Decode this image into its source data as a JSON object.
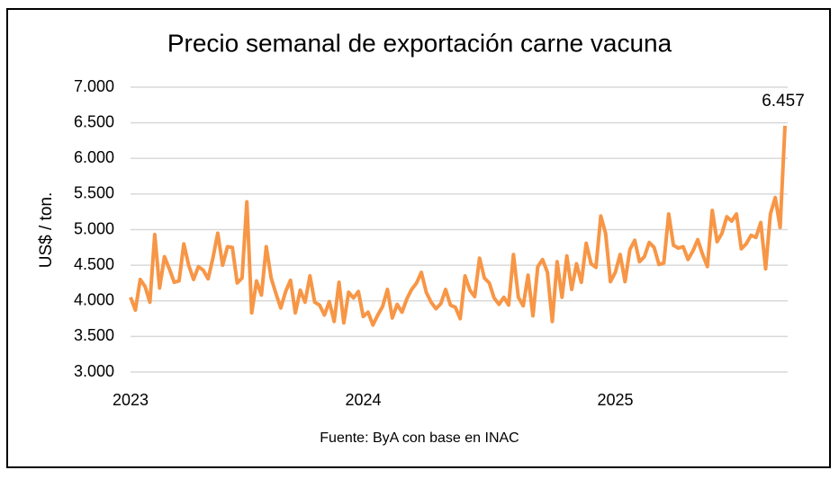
{
  "chart_data": {
    "type": "line",
    "title": "Precio semanal de exportación carne vacuna",
    "y_label": "US$ / ton.",
    "source": "Fuente: ByA con base en INAC",
    "categories": [
      "2023",
      null,
      null,
      null,
      null,
      null,
      null,
      null,
      null,
      null,
      null,
      null,
      null,
      null,
      null,
      null,
      null,
      null,
      null,
      null,
      null,
      null,
      null,
      null,
      null,
      null,
      null,
      null,
      null,
      null,
      null,
      null,
      null,
      null,
      null,
      null,
      null,
      null,
      null,
      null,
      null,
      null,
      null,
      null,
      null,
      null,
      null,
      null,
      "2024",
      null,
      null,
      null,
      null,
      null,
      null,
      null,
      null,
      null,
      null,
      null,
      null,
      null,
      null,
      null,
      null,
      null,
      null,
      null,
      null,
      null,
      null,
      null,
      null,
      null,
      null,
      null,
      null,
      null,
      null,
      null,
      null,
      null,
      null,
      null,
      null,
      null,
      null,
      null,
      null,
      null,
      null,
      null,
      null,
      null,
      null,
      null,
      null,
      null,
      null,
      null,
      "2025",
      null,
      null,
      null,
      null,
      null,
      null,
      null,
      null,
      null,
      null,
      null,
      null,
      null,
      null,
      null,
      null,
      null,
      null,
      null,
      null,
      null,
      null,
      null,
      null,
      null,
      null,
      null,
      null,
      null,
      null,
      null,
      null,
      null,
      null,
      null
    ],
    "series": [
      {
        "name": "Precio",
        "color": "#f79646",
        "values": [
          4050,
          3870,
          4300,
          4200,
          3980,
          4930,
          4180,
          4620,
          4450,
          4260,
          4280,
          4800,
          4500,
          4300,
          4480,
          4430,
          4310,
          4600,
          4950,
          4500,
          4760,
          4750,
          4250,
          4320,
          5390,
          3830,
          4280,
          4080,
          4760,
          4320,
          4100,
          3900,
          4130,
          4290,
          3830,
          4150,
          3980,
          4350,
          3980,
          3940,
          3800,
          3990,
          3710,
          4260,
          3690,
          4120,
          4040,
          4130,
          3780,
          3840,
          3660,
          3800,
          3920,
          4160,
          3760,
          3950,
          3840,
          4030,
          4160,
          4250,
          4400,
          4120,
          3980,
          3890,
          3960,
          4160,
          3940,
          3910,
          3750,
          4350,
          4150,
          4060,
          4600,
          4320,
          4250,
          4040,
          3950,
          4050,
          3940,
          4650,
          4050,
          3930,
          4360,
          3790,
          4480,
          4580,
          4400,
          3710,
          4550,
          4050,
          4630,
          4160,
          4520,
          4260,
          4810,
          4520,
          4470,
          5190,
          4950,
          4270,
          4400,
          4650,
          4270,
          4720,
          4850,
          4550,
          4620,
          4820,
          4750,
          4510,
          4530,
          5220,
          4780,
          4740,
          4760,
          4580,
          4700,
          4860,
          4650,
          4480,
          5270,
          4830,
          4950,
          5180,
          5120,
          5220,
          4730,
          4800,
          4920,
          4890,
          5100,
          4450,
          5220,
          5450,
          5030,
          6457
        ],
        "value_labels": [
          null,
          null,
          null,
          null,
          null,
          null,
          null,
          null,
          null,
          null,
          null,
          null,
          null,
          null,
          null,
          null,
          null,
          null,
          null,
          null,
          null,
          null,
          null,
          null,
          null,
          null,
          null,
          null,
          null,
          null,
          null,
          null,
          null,
          null,
          null,
          null,
          null,
          null,
          null,
          null,
          null,
          null,
          null,
          null,
          null,
          null,
          null,
          null,
          null,
          null,
          null,
          null,
          null,
          null,
          null,
          null,
          null,
          null,
          null,
          null,
          null,
          null,
          null,
          null,
          null,
          null,
          null,
          null,
          null,
          null,
          null,
          null,
          null,
          null,
          null,
          null,
          null,
          null,
          null,
          null,
          null,
          null,
          null,
          null,
          null,
          null,
          null,
          null,
          null,
          null,
          null,
          null,
          null,
          null,
          null,
          null,
          null,
          null,
          null,
          null,
          null,
          null,
          null,
          null,
          null,
          null,
          null,
          null,
          null,
          null,
          null,
          null,
          null,
          null,
          null,
          null,
          null,
          null,
          null,
          null,
          null,
          null,
          null,
          null,
          null,
          null,
          null,
          null,
          null,
          null,
          null,
          null,
          null,
          null,
          null,
          "6.457"
        ]
      }
    ],
    "ylim": [
      3000,
      7000
    ],
    "yticks": [
      {
        "value": 3000,
        "label": "3.000"
      },
      {
        "value": 3500,
        "label": "3.500"
      },
      {
        "value": 4000,
        "label": "4.000"
      },
      {
        "value": 4500,
        "label": "4.500"
      },
      {
        "value": 5000,
        "label": "5.000"
      },
      {
        "value": 5500,
        "label": "5.500"
      },
      {
        "value": 6000,
        "label": "6.000"
      },
      {
        "value": 6500,
        "label": "6.500"
      },
      {
        "value": 7000,
        "label": "7.000"
      }
    ],
    "grid": true
  }
}
